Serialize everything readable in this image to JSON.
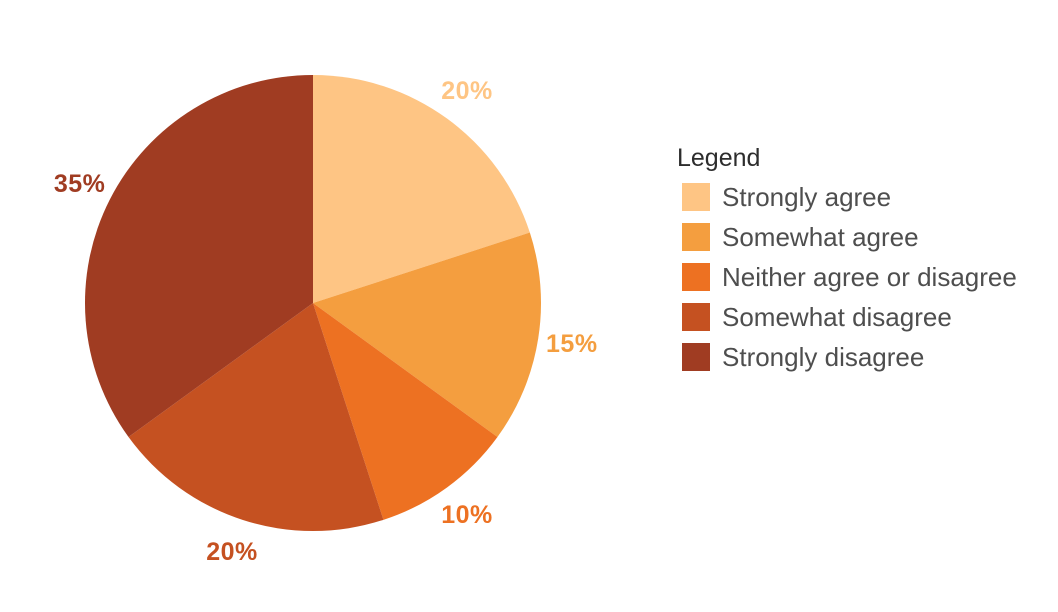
{
  "chart_data": {
    "type": "pie",
    "categories": [
      "Strongly agree",
      "Somewhat agree",
      "Neither agree or disagree",
      "Somewhat disagree",
      "Strongly disagree"
    ],
    "values": [
      20,
      15,
      10,
      20,
      35
    ],
    "labels": [
      "20%",
      "15%",
      "10%",
      "20%",
      "35%"
    ],
    "colors": [
      "#FEC584",
      "#F49E3F",
      "#ED7122",
      "#C55121",
      "#A03C22"
    ],
    "start_angle_deg": 0,
    "direction": "clockwise",
    "label_position": "outside",
    "legend_position": "right",
    "title": ""
  },
  "legend": {
    "title": "Legend",
    "items": [
      {
        "label": "Strongly agree",
        "color": "#FEC584"
      },
      {
        "label": "Somewhat agree",
        "color": "#F49E3F"
      },
      {
        "label": "Neither agree or disagree",
        "color": "#ED7122"
      },
      {
        "label": "Somewhat disagree",
        "color": "#C55121"
      },
      {
        "label": "Strongly disagree",
        "color": "#A03C22"
      }
    ]
  },
  "colors": {
    "background": "#FFFFFF",
    "legend_title_text": "#2D2D2D",
    "legend_item_text": "#4E4E4E"
  }
}
